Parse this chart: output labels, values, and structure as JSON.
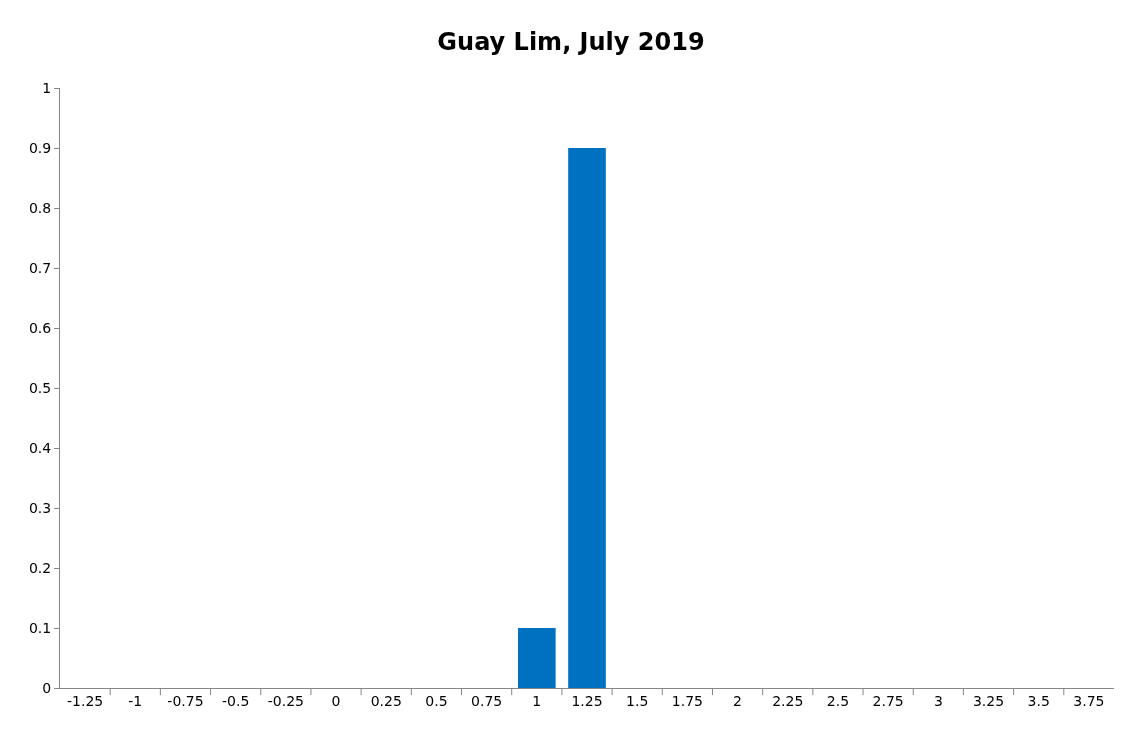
{
  "chart_data": {
    "type": "bar",
    "title": "Guay Lim, July 2019",
    "categories": [
      "-1.25",
      "-1",
      "-0.75",
      "-0.5",
      "-0.25",
      "0",
      "0.25",
      "0.5",
      "0.75",
      "1",
      "1.25",
      "1.5",
      "1.75",
      "2",
      "2.25",
      "2.5",
      "2.75",
      "3",
      "3.25",
      "3.5",
      "3.75"
    ],
    "values": [
      0,
      0,
      0,
      0,
      0,
      0,
      0,
      0,
      0,
      0.1,
      0.9,
      0,
      0,
      0,
      0,
      0,
      0,
      0,
      0,
      0,
      0
    ],
    "color": "#0070c0",
    "ylim": [
      0,
      1
    ],
    "yticks": [
      0,
      0.1,
      0.2,
      0.3,
      0.4,
      0.5,
      0.6,
      0.7,
      0.8,
      0.9,
      1
    ]
  }
}
